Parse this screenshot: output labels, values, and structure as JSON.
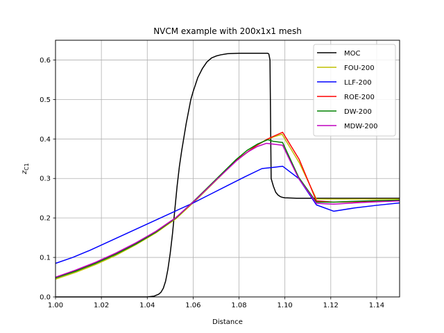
{
  "chart_data": {
    "type": "line",
    "title": "NVCM example with 200x1x1 mesh",
    "xlabel": "Distance",
    "ylabel_main": "z",
    "ylabel_sub": "C1",
    "xlim": [
      1.0,
      1.15
    ],
    "ylim": [
      0.0,
      0.65
    ],
    "xticks": [
      1.0,
      1.02,
      1.04,
      1.06,
      1.08,
      1.1,
      1.12,
      1.14
    ],
    "xtick_labels": [
      "1.00",
      "1.02",
      "1.04",
      "1.06",
      "1.08",
      "1.10",
      "1.12",
      "1.14"
    ],
    "yticks": [
      0.0,
      0.1,
      0.2,
      0.3,
      0.4,
      0.5,
      0.6
    ],
    "ytick_labels": [
      "0.0",
      "0.1",
      "0.2",
      "0.3",
      "0.4",
      "0.5",
      "0.6"
    ],
    "grid": true,
    "legend_position": "top-right",
    "series": [
      {
        "name": "MOC",
        "color": "#000000",
        "x": [
          1.0,
          1.02,
          1.04,
          1.043,
          1.045,
          1.046,
          1.047,
          1.048,
          1.049,
          1.05,
          1.051,
          1.052,
          1.053,
          1.054,
          1.055,
          1.056,
          1.057,
          1.058,
          1.059,
          1.06,
          1.062,
          1.064,
          1.066,
          1.068,
          1.07,
          1.072,
          1.075,
          1.08,
          1.085,
          1.09,
          1.0925,
          1.093,
          1.0935,
          1.094,
          1.095,
          1.096,
          1.097,
          1.098,
          1.099,
          1.1,
          1.105,
          1.11,
          1.12,
          1.13,
          1.14,
          1.15
        ],
        "y": [
          0.0,
          0.0,
          0.0,
          0.002,
          0.007,
          0.012,
          0.022,
          0.04,
          0.07,
          0.11,
          0.16,
          0.22,
          0.28,
          0.33,
          0.37,
          0.405,
          0.44,
          0.47,
          0.5,
          0.52,
          0.555,
          0.578,
          0.595,
          0.605,
          0.61,
          0.613,
          0.616,
          0.617,
          0.617,
          0.617,
          0.617,
          0.615,
          0.6,
          0.3,
          0.28,
          0.265,
          0.258,
          0.254,
          0.252,
          0.251,
          0.25,
          0.25,
          0.25,
          0.25,
          0.25,
          0.25
        ]
      },
      {
        "name": "FOU-200",
        "color": "#bfbf00",
        "x": [
          1.0,
          1.00875,
          1.0175,
          1.02625,
          1.035,
          1.04375,
          1.0525,
          1.06125,
          1.07,
          1.07875,
          1.0875,
          1.09125,
          1.095,
          1.09875,
          1.10625,
          1.11375,
          1.12125,
          1.13,
          1.14,
          1.15
        ],
        "y": [
          0.045,
          0.062,
          0.082,
          0.105,
          0.132,
          0.162,
          0.198,
          0.245,
          0.295,
          0.345,
          0.383,
          0.396,
          0.405,
          0.412,
          0.34,
          0.248,
          0.248,
          0.248,
          0.248,
          0.248
        ]
      },
      {
        "name": "LLF-200",
        "color": "#0000ff",
        "x": [
          1.0,
          1.0075,
          1.015,
          1.0225,
          1.03,
          1.0375,
          1.045,
          1.0525,
          1.06,
          1.0675,
          1.075,
          1.0825,
          1.09,
          1.095,
          1.099,
          1.106,
          1.11375,
          1.12125,
          1.13,
          1.14,
          1.15
        ],
        "y": [
          0.085,
          0.1,
          0.118,
          0.138,
          0.158,
          0.178,
          0.198,
          0.218,
          0.238,
          0.26,
          0.282,
          0.304,
          0.325,
          0.328,
          0.331,
          0.3,
          0.233,
          0.217,
          0.225,
          0.232,
          0.238
        ]
      },
      {
        "name": "ROE-200",
        "color": "#ff0000",
        "x": [
          1.0,
          1.00875,
          1.0175,
          1.02625,
          1.035,
          1.04375,
          1.0525,
          1.06125,
          1.07,
          1.07875,
          1.0875,
          1.0925,
          1.0955,
          1.099,
          1.10625,
          1.11375,
          1.12125,
          1.13,
          1.14,
          1.15
        ],
        "y": [
          0.05,
          0.067,
          0.087,
          0.11,
          0.136,
          0.166,
          0.201,
          0.247,
          0.297,
          0.346,
          0.383,
          0.4,
          0.408,
          0.417,
          0.348,
          0.243,
          0.24,
          0.241,
          0.243,
          0.245
        ]
      },
      {
        "name": "DW-200",
        "color": "#008000",
        "x": [
          1.0,
          1.00875,
          1.0175,
          1.02625,
          1.035,
          1.04375,
          1.0525,
          1.06125,
          1.07,
          1.07875,
          1.0835,
          1.088,
          1.0925,
          1.095,
          1.099,
          1.106,
          1.11375,
          1.12125,
          1.13,
          1.14,
          1.15
        ],
        "y": [
          0.048,
          0.065,
          0.085,
          0.108,
          0.134,
          0.164,
          0.2,
          0.248,
          0.298,
          0.348,
          0.371,
          0.387,
          0.398,
          0.394,
          0.391,
          0.303,
          0.24,
          0.24,
          0.242,
          0.244,
          0.245
        ]
      },
      {
        "name": "MDW-200",
        "color": "#bf00bf",
        "x": [
          1.0,
          1.00875,
          1.0175,
          1.02625,
          1.035,
          1.04375,
          1.0525,
          1.06125,
          1.07,
          1.07875,
          1.0835,
          1.088,
          1.092,
          1.095,
          1.099,
          1.106,
          1.11375,
          1.12125,
          1.13,
          1.14,
          1.15
        ],
        "y": [
          0.05,
          0.068,
          0.088,
          0.111,
          0.137,
          0.166,
          0.201,
          0.247,
          0.296,
          0.344,
          0.366,
          0.381,
          0.389,
          0.387,
          0.384,
          0.3,
          0.237,
          0.235,
          0.238,
          0.241,
          0.243
        ]
      }
    ]
  }
}
